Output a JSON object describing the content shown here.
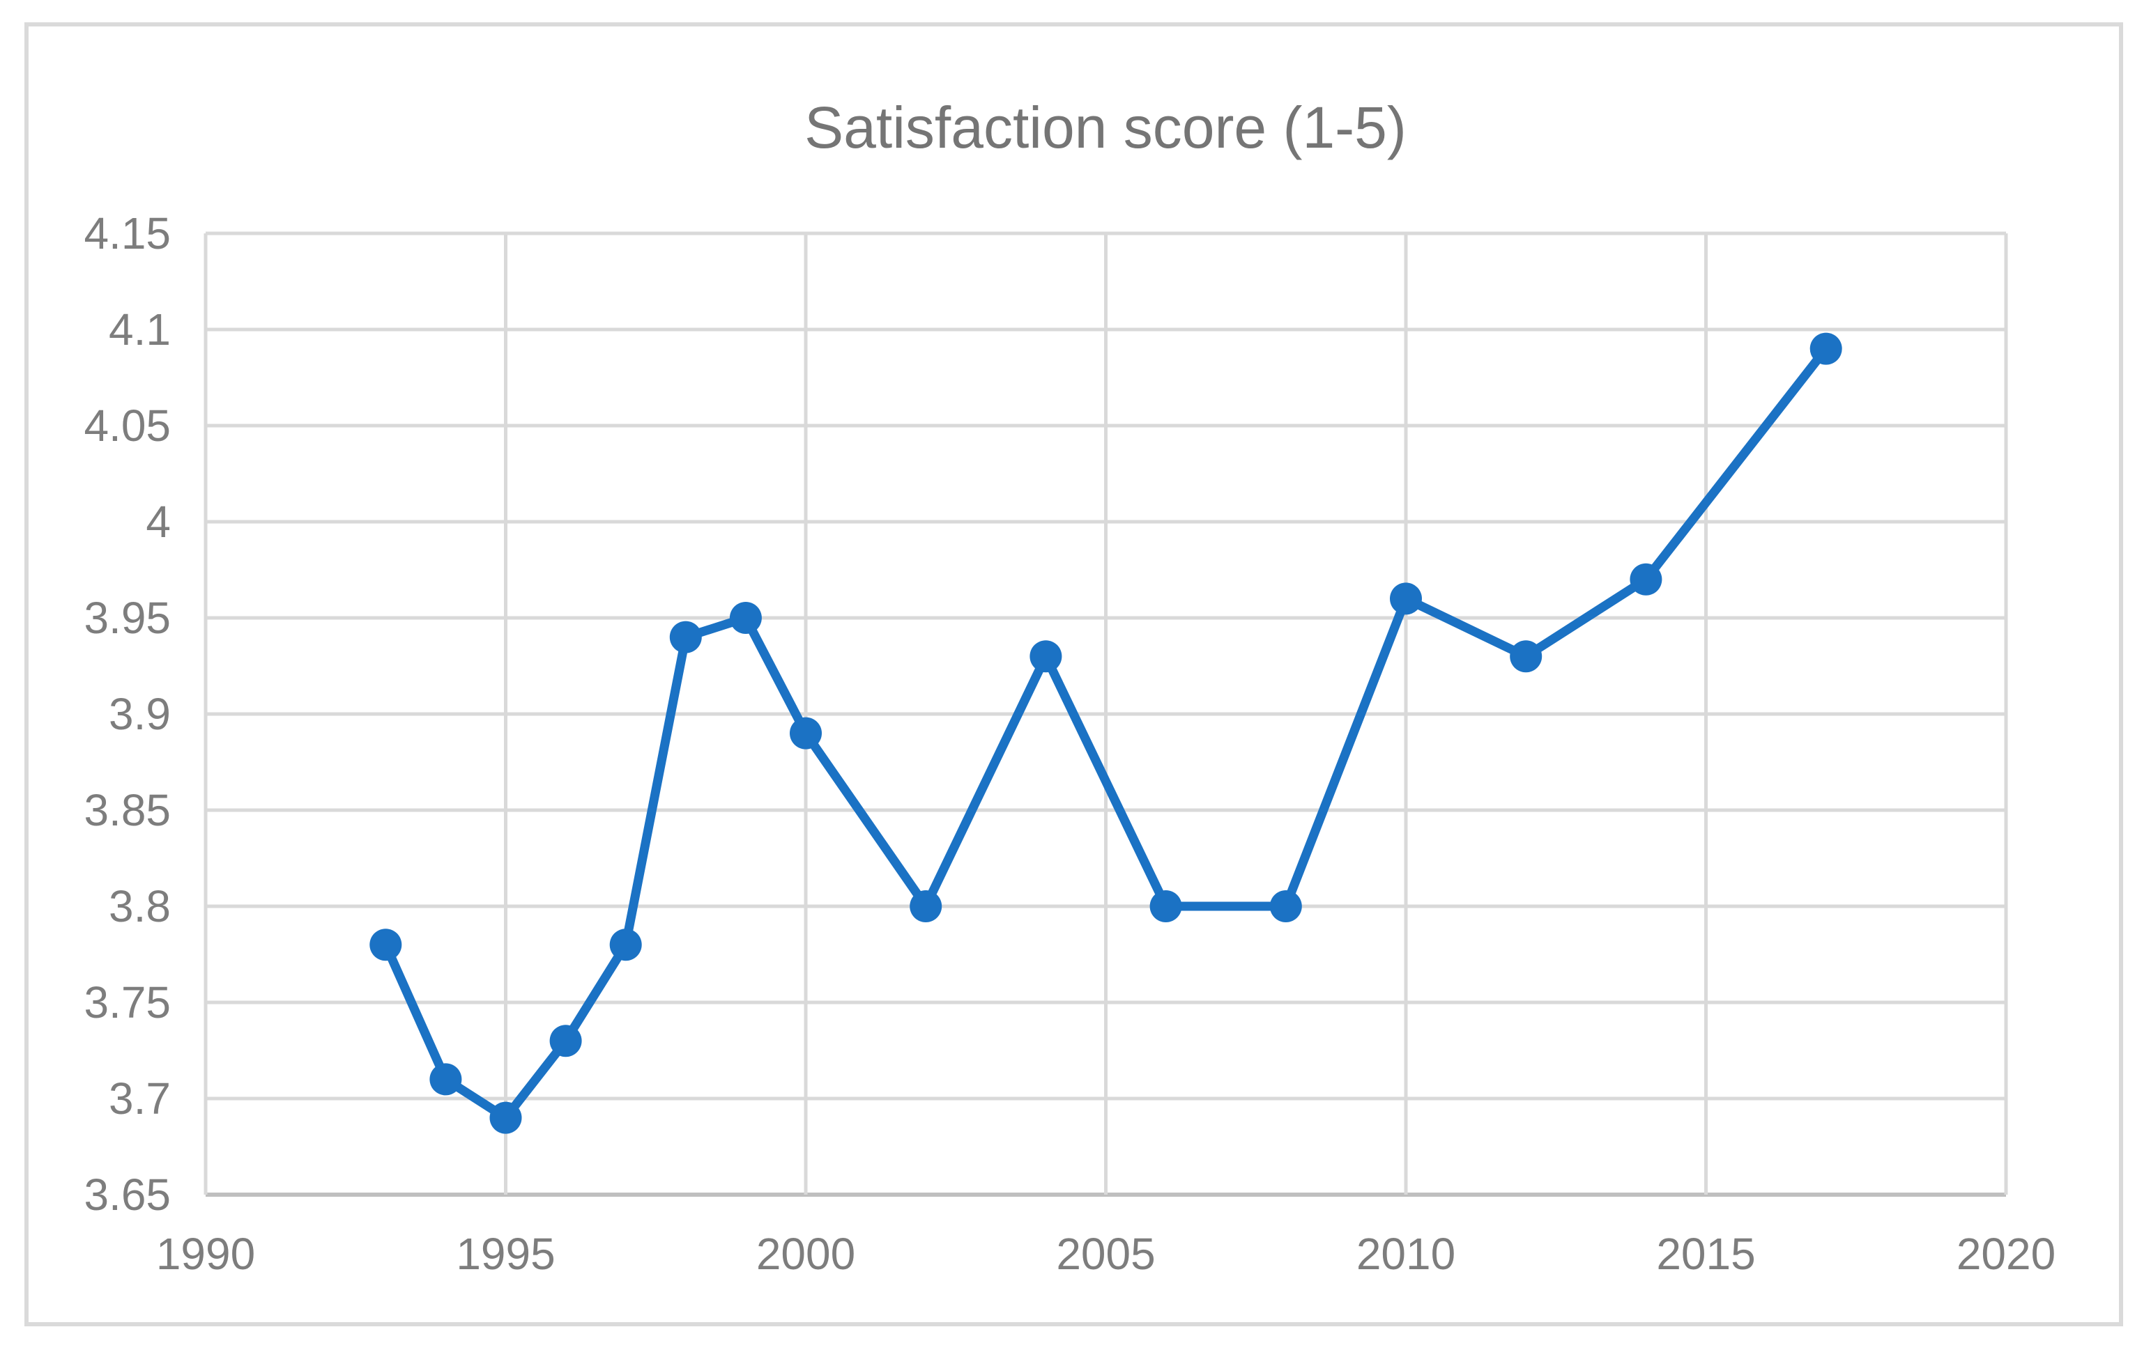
{
  "chart_data": {
    "type": "line",
    "title": "Satisfaction score (1-5)",
    "x": [
      1993,
      1994,
      1995,
      1996,
      1997,
      1998,
      1999,
      2000,
      2002,
      2004,
      2006,
      2008,
      2010,
      2012,
      2014,
      2017
    ],
    "values": [
      3.78,
      3.71,
      3.69,
      3.73,
      3.78,
      3.94,
      3.95,
      3.89,
      3.8,
      3.93,
      3.8,
      3.8,
      3.96,
      3.93,
      3.97,
      4.09
    ],
    "x_range": [
      1990,
      2020
    ],
    "y_range": [
      3.65,
      4.15
    ],
    "x_ticks": [
      "1990",
      "1995",
      "2000",
      "2005",
      "2010",
      "2015",
      "2020"
    ],
    "y_ticks": [
      "4.15",
      "4.1",
      "4.05",
      "4",
      "3.95",
      "3.9",
      "3.85",
      "3.8",
      "3.75",
      "3.7",
      "3.65"
    ],
    "grid": true,
    "legend": "none",
    "marker": "circle",
    "colors": {
      "line": "#1B72C4",
      "marker": "#1B72C4",
      "gridline": "#D9D9D9",
      "axis_line": "#BFBFBF",
      "tick_label": "#7D7D7D",
      "title": "#757575",
      "figure_border": "#DADADA",
      "background": "#FFFFFF"
    }
  }
}
